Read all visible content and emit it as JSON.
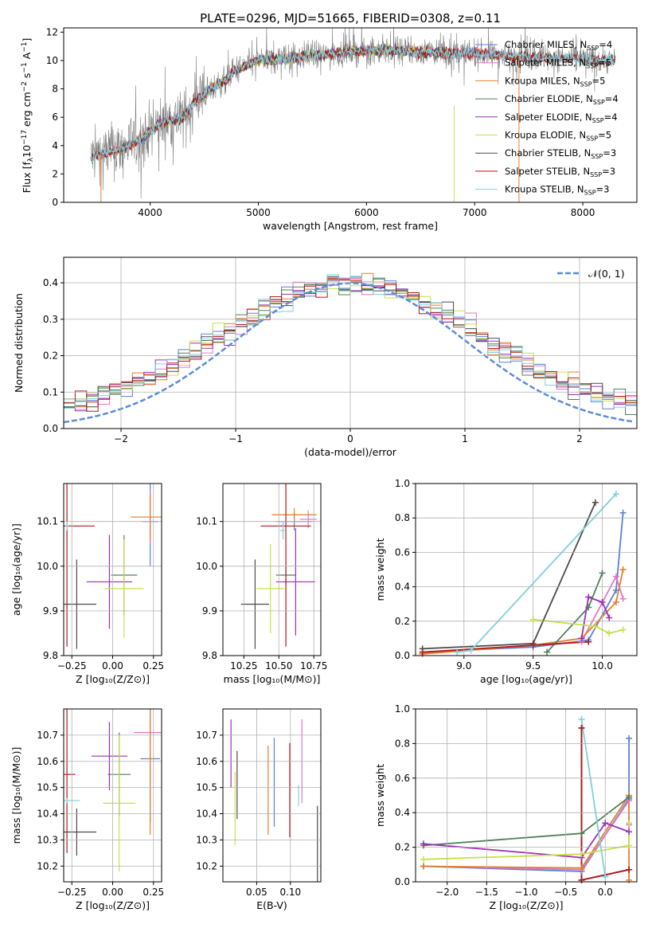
{
  "figure_title": "PLATE=0296, MJD=51665, FIBERID=0308, z=0.11",
  "colors": {
    "chabrier_miles": "#5b7fd6",
    "salpeter_miles": "#e178c5",
    "kroupa_miles": "#e37f27",
    "chabrier_elodie": "#4f7f5a",
    "salpeter_elodie": "#9a30b8",
    "kroupa_elodie": "#c9e04a",
    "chabrier_stelib": "#4a4a4a",
    "salpeter_stelib": "#b01818",
    "kroupa_stelib": "#7fd0dc",
    "normal_curve": "#5b8bd8",
    "data_spectrum": "#7f7f7f"
  },
  "chart_data": [
    {
      "id": "spectrum",
      "type": "line",
      "title": "PLATE=0296, MJD=51665, FIBERID=0308, z=0.11",
      "xlabel": "wavelength [Angstrom, rest frame]",
      "ylabel_main": "Flux [f",
      "ylabel_lambda": "λ",
      "ylabel_rest": "10",
      "ylabel_exp1": "−17",
      "ylabel_mid": " erg cm",
      "ylabel_exp2": "−2",
      "ylabel_s": " s",
      "ylabel_exp3": "−1",
      "ylabel_end": " A",
      "ylabel_exp4": "−1",
      "ylabel_close": "]",
      "xlim": [
        3200,
        8500
      ],
      "ylim": [
        0,
        12.3
      ],
      "xticks": [
        "4000",
        "5000",
        "6000",
        "7000",
        "8000"
      ],
      "xtick_values": [
        4000,
        5000,
        6000,
        7000,
        8000
      ],
      "yticks": [
        "0",
        "2",
        "4",
        "6",
        "8",
        "10",
        "12"
      ],
      "ytick_values": [
        0,
        2,
        4,
        6,
        8,
        10,
        12
      ],
      "grid": false,
      "legend_position": "right",
      "legend": [
        {
          "name": "Chabrier MILES, N",
          "sub": "SSP",
          "val": "=4",
          "color_key": "chabrier_miles"
        },
        {
          "name": "Salpeter MILES, N",
          "sub": "SSP",
          "val": "=5",
          "color_key": "salpeter_miles"
        },
        {
          "name": "Kroupa MILES, N",
          "sub": "SSP",
          "val": "=5",
          "color_key": "kroupa_miles"
        },
        {
          "name": "Chabrier ELODIE, N",
          "sub": "SSP",
          "val": "=4",
          "color_key": "chabrier_elodie"
        },
        {
          "name": "Salpeter ELODIE, N",
          "sub": "SSP",
          "val": "=4",
          "color_key": "salpeter_elodie"
        },
        {
          "name": "Kroupa ELODIE, N",
          "sub": "SSP",
          "val": "=5",
          "color_key": "kroupa_elodie"
        },
        {
          "name": "Chabrier STELIB, N",
          "sub": "SSP",
          "val": "=3",
          "color_key": "chabrier_stelib"
        },
        {
          "name": "Salpeter STELIB, N",
          "sub": "SSP",
          "val": "=3",
          "color_key": "salpeter_stelib"
        },
        {
          "name": "Kroupa STELIB, N",
          "sub": "SSP",
          "val": "=3",
          "color_key": "kroupa_stelib"
        }
      ],
      "continuum": {
        "x": [
          3450,
          3600,
          3700,
          3800,
          3900,
          4000,
          4100,
          4200,
          4300,
          4400,
          4500,
          4600,
          4700,
          4800,
          4900,
          5000,
          5200,
          5400,
          5600,
          5800,
          6000,
          6200,
          6400,
          6600,
          6800,
          7000,
          7200,
          7400,
          7600,
          7800,
          8000,
          8200,
          8300
        ],
        "y": [
          3.2,
          3.5,
          3.7,
          4.0,
          4.4,
          5.0,
          5.6,
          5.8,
          5.9,
          7.0,
          7.6,
          8.2,
          8.6,
          9.4,
          9.7,
          10.0,
          10.1,
          10.3,
          10.4,
          10.6,
          10.7,
          10.7,
          10.6,
          10.6,
          10.5,
          10.5,
          10.4,
          10.3,
          10.2,
          10.2,
          10.1,
          10.0,
          10.0
        ]
      }
    },
    {
      "id": "residuals",
      "type": "histogram",
      "xlabel": "(data-model)/error",
      "ylabel": "Normed distribution",
      "xlim": [
        -2.5,
        2.5
      ],
      "ylim": [
        0,
        0.47
      ],
      "xticks": [
        "−2",
        "−1",
        "0",
        "1",
        "2"
      ],
      "xtick_values": [
        -2,
        -1,
        0,
        1,
        2
      ],
      "yticks": [
        "0.0",
        "0.1",
        "0.2",
        "0.3",
        "0.4"
      ],
      "ytick_values": [
        0,
        0.1,
        0.2,
        0.3,
        0.4
      ],
      "grid": true,
      "legend_position": "top-right",
      "legend_label": "𝒩(0, 1)",
      "bin_width": 0.1
    },
    {
      "id": "age-vs-Z",
      "type": "errorbar",
      "xlabel": "Z [log₁₀(Z/Z⊙)]",
      "ylabel": "age  [log₁₀(age/yr)]",
      "xlim": [
        -0.3,
        0.3
      ],
      "ylim": [
        9.8,
        10.185
      ],
      "xticks": [
        "−0.25",
        "0.00",
        "0.25"
      ],
      "xtick_values": [
        -0.25,
        0,
        0.25
      ],
      "yticks": [
        "9.8",
        "9.9",
        "10.0",
        "10.1"
      ],
      "ytick_values": [
        9.8,
        9.9,
        10.0,
        10.1
      ],
      "grid": true,
      "points": [
        {
          "c": "chabrier_miles",
          "x": 0.23,
          "xerr": 0.05,
          "y": 10.1,
          "yerr": 0.1
        },
        {
          "c": "salpeter_miles",
          "x": 0.23,
          "xerr": 0.01,
          "y": 10.11,
          "yerr": 0.06
        },
        {
          "c": "kroupa_miles",
          "x": 0.23,
          "xerr": 0.12,
          "y": 10.11,
          "yerr": 0.05
        },
        {
          "c": "chabrier_elodie",
          "x": 0.07,
          "xerr": 0.08,
          "y": 9.98,
          "yerr": 0.09
        },
        {
          "c": "salpeter_elodie",
          "x": -0.02,
          "xerr": 0.14,
          "y": 9.965,
          "yerr": 0.105
        },
        {
          "c": "kroupa_elodie",
          "x": 0.07,
          "xerr": 0.12,
          "y": 9.95,
          "yerr": 0.11
        },
        {
          "c": "chabrier_stelib",
          "x": -0.22,
          "xerr": 0.12,
          "y": 9.915,
          "yerr": 0.1
        },
        {
          "c": "salpeter_stelib",
          "x": -0.28,
          "xerr": 0.17,
          "y": 10.09,
          "yerr": 0.27
        },
        {
          "c": "kroupa_stelib",
          "x": -0.28,
          "xerr": 0.01,
          "y": 10.09,
          "yerr": 0.01
        }
      ]
    },
    {
      "id": "age-vs-mass",
      "type": "errorbar",
      "xlabel": "mass [log₁₀(M/M⊙)]",
      "ylabel": "",
      "xlim": [
        10.1,
        10.8
      ],
      "ylim": [
        9.8,
        10.185
      ],
      "xticks": [
        "10.25",
        "10.50",
        "10.75"
      ],
      "xtick_values": [
        10.25,
        10.5,
        10.75
      ],
      "yticks": [
        "9.8",
        "9.9",
        "10.0",
        "10.1"
      ],
      "ytick_values": [
        9.8,
        9.9,
        10.0,
        10.1
      ],
      "grid": true,
      "points": [
        {
          "c": "chabrier_miles",
          "x": 10.61,
          "xerr": 0.13,
          "y": 10.1,
          "yerr": 0.02
        },
        {
          "c": "salpeter_miles",
          "x": 10.71,
          "xerr": 0.06,
          "y": 10.105,
          "yerr": 0.02
        },
        {
          "c": "kroupa_miles",
          "x": 10.61,
          "xerr": 0.16,
          "y": 10.115,
          "yerr": 0.015
        },
        {
          "c": "chabrier_elodie",
          "x": 10.55,
          "xerr": 0.07,
          "y": 9.98,
          "yerr": 0.02
        },
        {
          "c": "salpeter_elodie",
          "x": 10.62,
          "xerr": 0.14,
          "y": 9.965,
          "yerr": 0.12
        },
        {
          "c": "kroupa_elodie",
          "x": 10.44,
          "xerr": 0.1,
          "y": 9.95,
          "yerr": 0.1
        },
        {
          "c": "chabrier_stelib",
          "x": 10.33,
          "xerr": 0.1,
          "y": 9.915,
          "yerr": 0.1
        },
        {
          "c": "salpeter_stelib",
          "x": 10.55,
          "xerr": 0.18,
          "y": 10.09,
          "yerr": 0.27
        },
        {
          "c": "kroupa_stelib",
          "x": 10.53,
          "xerr": 0.02,
          "y": 10.08,
          "yerr": 0.02
        }
      ]
    },
    {
      "id": "massweight-vs-age",
      "type": "line",
      "xlabel": "age  [log₁₀(age/yr)]",
      "ylabel": "mass weight",
      "xlim": [
        8.65,
        10.25
      ],
      "ylim": [
        0,
        1
      ],
      "xticks": [
        "9.0",
        "9.5",
        "10.0"
      ],
      "xtick_values": [
        9,
        9.5,
        10
      ],
      "yticks": [
        "0.0",
        "0.2",
        "0.4",
        "0.6",
        "0.8",
        "1.0"
      ],
      "ytick_values": [
        0,
        0.2,
        0.4,
        0.6,
        0.8,
        1.0
      ],
      "grid": true,
      "series": [
        {
          "c": "chabrier_miles",
          "x": [
            8.7,
            9.5,
            9.9,
            10.1,
            10.15
          ],
          "y": [
            0.02,
            0.05,
            0.09,
            0.38,
            0.83
          ]
        },
        {
          "c": "salpeter_miles",
          "x": [
            8.7,
            9.5,
            9.85,
            10.1,
            10.15
          ],
          "y": [
            0.01,
            0.06,
            0.08,
            0.46,
            0.33
          ]
        },
        {
          "c": "kroupa_miles",
          "x": [
            8.7,
            9.5,
            9.85,
            10.1,
            10.15
          ],
          "y": [
            0.01,
            0.06,
            0.1,
            0.31,
            0.5
          ]
        },
        {
          "c": "chabrier_elodie",
          "x": [
            9.6,
            9.9,
            10.0
          ],
          "y": [
            0.02,
            0.28,
            0.48
          ]
        },
        {
          "c": "salpeter_elodie",
          "x": [
            9.85,
            9.9,
            10.0,
            10.05
          ],
          "y": [
            0.1,
            0.34,
            0.31,
            0.22
          ]
        },
        {
          "c": "kroupa_elodie",
          "x": [
            9.5,
            9.95,
            10.05,
            10.15
          ],
          "y": [
            0.21,
            0.17,
            0.13,
            0.15
          ]
        },
        {
          "c": "chabrier_stelib",
          "x": [
            8.7,
            9.5,
            9.95
          ],
          "y": [
            0.04,
            0.07,
            0.89
          ]
        },
        {
          "c": "salpeter_stelib",
          "x": [
            8.7,
            9.5,
            9.9
          ],
          "y": [
            0.02,
            0.06,
            0.08
          ]
        },
        {
          "c": "kroupa_stelib",
          "x": [
            8.95,
            9.05,
            10.1
          ],
          "y": [
            0.02,
            0.03,
            0.94
          ]
        }
      ]
    },
    {
      "id": "mass-vs-Z",
      "type": "errorbar",
      "xlabel": "Z [log₁₀(Z/Z⊙)]",
      "ylabel": "mass [log₁₀(M/M⊙)]",
      "xlim": [
        -0.3,
        0.3
      ],
      "ylim": [
        10.14,
        10.8
      ],
      "xticks": [
        "−0.25",
        "0.00",
        "0.25"
      ],
      "xtick_values": [
        -0.25,
        0,
        0.25
      ],
      "yticks": [
        "10.2",
        "10.3",
        "10.4",
        "10.5",
        "10.6",
        "10.7"
      ],
      "ytick_values": [
        10.2,
        10.3,
        10.4,
        10.5,
        10.6,
        10.7
      ],
      "grid": true,
      "points": [
        {
          "c": "chabrier_miles",
          "x": 0.23,
          "xerr": 0.06,
          "y": 10.61,
          "yerr": 0.24
        },
        {
          "c": "salpeter_miles",
          "x": 0.23,
          "xerr": 0.1,
          "y": 10.71,
          "yerr": 0.05
        },
        {
          "c": "kroupa_miles",
          "x": 0.23,
          "xerr": 0.02,
          "y": 10.61,
          "yerr": 0.29
        },
        {
          "c": "chabrier_elodie",
          "x": 0.04,
          "xerr": 0.07,
          "y": 10.55,
          "yerr": 0.16
        },
        {
          "c": "salpeter_elodie",
          "x": -0.02,
          "xerr": 0.11,
          "y": 10.62,
          "yerr": 0.13
        },
        {
          "c": "kroupa_elodie",
          "x": 0.04,
          "xerr": 0.1,
          "y": 10.44,
          "yerr": 0.26
        },
        {
          "c": "chabrier_stelib",
          "x": -0.22,
          "xerr": 0.12,
          "y": 10.33,
          "yerr": 0.09
        },
        {
          "c": "salpeter_stelib",
          "x": -0.28,
          "xerr": 0.05,
          "y": 10.55,
          "yerr": 0.3
        },
        {
          "c": "kroupa_stelib",
          "x": -0.28,
          "xerr": 0.08,
          "y": 10.45,
          "yerr": 0.01
        }
      ]
    },
    {
      "id": "mass-vs-EBV",
      "type": "errorbar",
      "xlabel": "E(B-V)",
      "ylabel": "",
      "xlim": [
        0,
        0.145
      ],
      "ylim": [
        10.14,
        10.8
      ],
      "xticks": [
        "0.05",
        "0.10"
      ],
      "xtick_values": [
        0.05,
        0.1
      ],
      "yticks": [
        "10.2",
        "10.3",
        "10.4",
        "10.5",
        "10.6",
        "10.7"
      ],
      "ytick_values": [
        10.2,
        10.3,
        10.4,
        10.5,
        10.6,
        10.7
      ],
      "grid": true,
      "points": [
        {
          "c": "salpeter_elodie",
          "x": 0.012,
          "y": 10.63,
          "yerr": 0.13
        },
        {
          "c": "kroupa_elodie",
          "x": 0.018,
          "y": 10.42,
          "yerr": 0.14
        },
        {
          "c": "chabrier_stelib",
          "x": 0.021,
          "y": 10.51,
          "yerr": 0.13
        },
        {
          "c": "kroupa_miles",
          "x": 0.067,
          "y": 10.49,
          "yerr": 0.17
        },
        {
          "c": "chabrier_miles",
          "x": 0.076,
          "y": 10.52,
          "yerr": 0.17
        },
        {
          "c": "salpeter_stelib",
          "x": 0.099,
          "y": 10.49,
          "yerr": 0.18
        },
        {
          "c": "kroupa_stelib",
          "x": 0.112,
          "y": 10.47,
          "yerr": 0.04
        },
        {
          "c": "salpeter_miles",
          "x": 0.117,
          "y": 10.6,
          "yerr": 0.16
        },
        {
          "c": "chabrier_stelib",
          "x": 0.14,
          "y": 10.22,
          "yerr": 0.21
        }
      ]
    },
    {
      "id": "massweight-vs-Z",
      "type": "line",
      "xlabel": "Z [log₁₀(Z/Z⊙)]",
      "ylabel": "mass weight",
      "xlim": [
        -2.4,
        0.4
      ],
      "ylim": [
        0,
        1
      ],
      "xticks": [
        "−2.0",
        "−1.5",
        "−1.0",
        "−0.5",
        "0.0"
      ],
      "xtick_values": [
        -2,
        -1.5,
        -1,
        -0.5,
        0
      ],
      "yticks": [
        "0.0",
        "0.2",
        "0.4",
        "0.6",
        "0.8",
        "1.0"
      ],
      "ytick_values": [
        0,
        0.2,
        0.4,
        0.6,
        0.8,
        1.0
      ],
      "grid": true,
      "series": [
        {
          "c": "chabrier_miles",
          "x": [
            -2.3,
            -0.3,
            0.3,
            0.3
          ],
          "y": [
            0.09,
            0.06,
            0.48,
            0.83
          ]
        },
        {
          "c": "salpeter_miles",
          "x": [
            -2.3,
            -0.3,
            0.3,
            0.3
          ],
          "y": [
            0.09,
            0.07,
            0.47,
            0.33
          ]
        },
        {
          "c": "kroupa_miles",
          "x": [
            -2.3,
            -0.3,
            0.3,
            0.3
          ],
          "y": [
            0.09,
            0.08,
            0.5,
            0.01
          ]
        },
        {
          "c": "chabrier_elodie",
          "x": [
            -2.3,
            -0.3,
            0.3
          ],
          "y": [
            0.21,
            0.28,
            0.49
          ]
        },
        {
          "c": "salpeter_elodie",
          "x": [
            -2.3,
            -0.3,
            0.0,
            0.3
          ],
          "y": [
            0.22,
            0.14,
            0.34,
            0.29
          ]
        },
        {
          "c": "kroupa_elodie",
          "x": [
            -2.3,
            -0.3,
            0.3,
            0.3
          ],
          "y": [
            0.13,
            0.16,
            0.21,
            0.34
          ]
        },
        {
          "c": "chabrier_stelib",
          "x": [
            -0.3,
            -0.3,
            0.3
          ],
          "y": [
            0.89,
            0.01,
            0.07
          ]
        },
        {
          "c": "salpeter_stelib",
          "x": [
            -0.3,
            -0.3,
            0.3
          ],
          "y": [
            0.89,
            0.01,
            0.07
          ]
        },
        {
          "c": "kroupa_stelib",
          "x": [
            -0.3,
            0.0,
            0.0
          ],
          "y": [
            0.94,
            0.03,
            0.03
          ]
        }
      ]
    }
  ]
}
